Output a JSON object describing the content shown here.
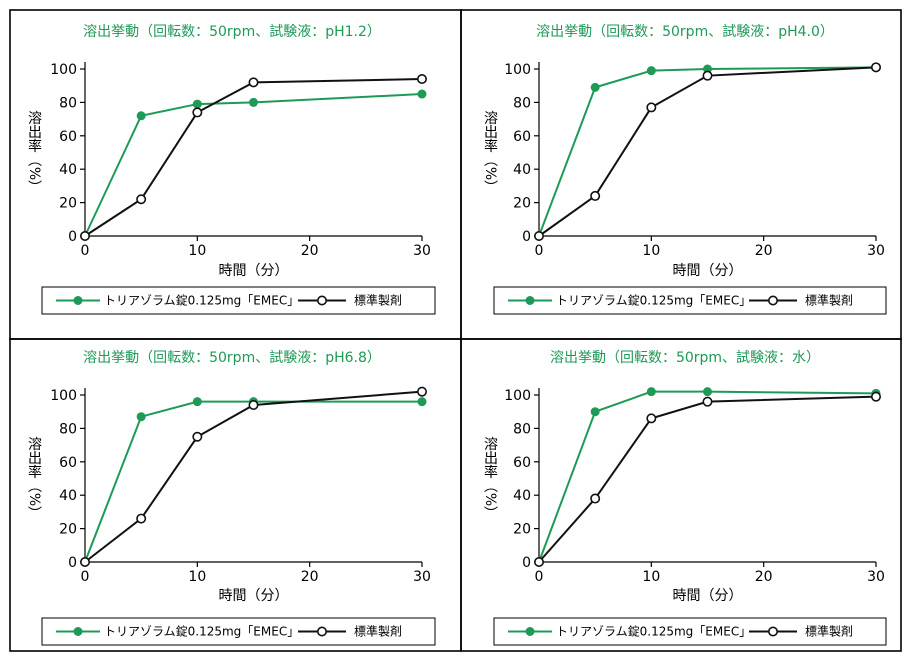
{
  "colors": {
    "test": "#1e9a57",
    "reference": "#111111",
    "title": "#1e9a57"
  },
  "legend": {
    "test_label": "トリアゾラム錠0.125mg「EMEC」",
    "reference_label": "標準製剤"
  },
  "chart_data": [
    {
      "type": "line",
      "title": "溶出挙動（回転数：50rpm、試験液：pH1.2）",
      "xlabel": "時間（分）",
      "ylabel": "溶出率（%）",
      "xticks": [
        0,
        10,
        20,
        30
      ],
      "yticks": [
        0,
        20,
        40,
        60,
        80,
        100
      ],
      "xlim": [
        0,
        30
      ],
      "ylim": [
        0,
        100
      ],
      "series": [
        {
          "name": "トリアゾラム錠0.125mg「EMEC」",
          "x": [
            0,
            5,
            10,
            15,
            30
          ],
          "y": [
            0,
            72,
            79,
            80,
            85
          ]
        },
        {
          "name": "標準製剤",
          "x": [
            0,
            5,
            10,
            15,
            30
          ],
          "y": [
            0,
            22,
            74,
            92,
            94
          ]
        }
      ]
    },
    {
      "type": "line",
      "title": "溶出挙動（回転数：50rpm、試験液：pH4.0）",
      "xlabel": "時間（分）",
      "ylabel": "溶出率（%）",
      "xticks": [
        0,
        10,
        20,
        30
      ],
      "yticks": [
        0,
        20,
        40,
        60,
        80,
        100
      ],
      "xlim": [
        0,
        30
      ],
      "ylim": [
        0,
        100
      ],
      "series": [
        {
          "name": "トリアゾラム錠0.125mg「EMEC」",
          "x": [
            0,
            5,
            10,
            15,
            30
          ],
          "y": [
            0,
            89,
            99,
            100,
            101
          ]
        },
        {
          "name": "標準製剤",
          "x": [
            0,
            5,
            10,
            15,
            30
          ],
          "y": [
            0,
            24,
            77,
            96,
            101
          ]
        }
      ]
    },
    {
      "type": "line",
      "title": "溶出挙動（回転数：50rpm、試験液：pH6.8）",
      "xlabel": "時間（分）",
      "ylabel": "溶出率（%）",
      "xticks": [
        0,
        10,
        20,
        30
      ],
      "yticks": [
        0,
        20,
        40,
        60,
        80,
        100
      ],
      "xlim": [
        0,
        30
      ],
      "ylim": [
        0,
        100
      ],
      "series": [
        {
          "name": "トリアゾラム錠0.125mg「EMEC」",
          "x": [
            0,
            5,
            10,
            15,
            30
          ],
          "y": [
            0,
            87,
            96,
            96,
            96
          ]
        },
        {
          "name": "標準製剤",
          "x": [
            0,
            5,
            10,
            15,
            30
          ],
          "y": [
            0,
            26,
            75,
            94,
            102
          ]
        }
      ]
    },
    {
      "type": "line",
      "title": "溶出挙動（回転数：50rpm、試験液：水）",
      "xlabel": "時間（分）",
      "ylabel": "溶出率（%）",
      "xticks": [
        0,
        10,
        20,
        30
      ],
      "yticks": [
        0,
        20,
        40,
        60,
        80,
        100
      ],
      "xlim": [
        0,
        30
      ],
      "ylim": [
        0,
        100
      ],
      "series": [
        {
          "name": "トリアゾラム錠0.125mg「EMEC」",
          "x": [
            0,
            5,
            10,
            15,
            30
          ],
          "y": [
            0,
            90,
            102,
            102,
            101
          ]
        },
        {
          "name": "標準製剤",
          "x": [
            0,
            5,
            10,
            15,
            30
          ],
          "y": [
            0,
            38,
            86,
            96,
            99
          ]
        }
      ]
    }
  ]
}
